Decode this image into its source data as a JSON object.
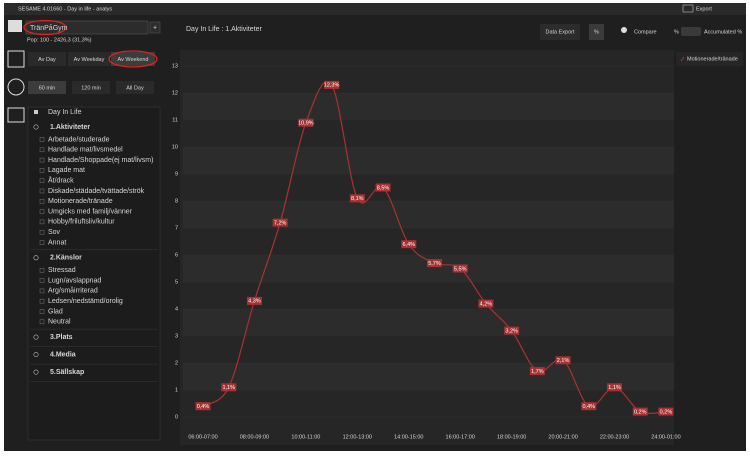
{
  "window": {
    "title": "SESAME 4.01660 - Day in life - analys",
    "export": "Export"
  },
  "sidebar": {
    "group": "TränPåGym",
    "pop": "Pop: 100 - 2426,3 (31,3%)",
    "day_buttons": [
      "Av Day",
      "Av Weekday",
      "Av Weekend"
    ],
    "time_buttons": [
      "60 min",
      "120 min",
      "All Day"
    ],
    "tree_header": "Day In Life",
    "sections": [
      {
        "label": "1.Aktiviteter",
        "items": [
          "Arbetade/studerade",
          "Handlade mat/livsmedel",
          "Handlade/Shoppade(ej mat/livsm)",
          "Lagade mat",
          "Åt/drack",
          "Diskade/städade/tvättade/strök",
          "Motionerade/tränade",
          "Umgicks med familj/vänner",
          "Hobby/friluftsliv/kultur",
          "Sov",
          "Annat"
        ]
      },
      {
        "label": "2.Känslor",
        "items": [
          "Stressad",
          "Lugn/avslappnad",
          "Arg/småirriterad",
          "Ledsen/nedstämd/orolig",
          "Glad",
          "Neutral"
        ]
      },
      {
        "label": "3.Plats",
        "items": []
      },
      {
        "label": "4.Media",
        "items": []
      },
      {
        "label": "5.Sällskap",
        "items": []
      }
    ]
  },
  "toolbar": {
    "data_export": "Data Export",
    "percent": "%",
    "compare": "Compare",
    "percent_toggle": "%",
    "accumulated": "Accumulated %"
  },
  "chart_data": {
    "type": "line",
    "title": "Day In Life : 1.Aktiviteter",
    "categories": [
      "06:00-07:00",
      null,
      "08:00-09:00",
      null,
      "10:00-11:00",
      null,
      "12:00-13:00",
      null,
      "14:00-15:00",
      null,
      "16:00-17:00",
      null,
      "18:00-19:00",
      null,
      "20:00-21:00",
      null,
      "22:00-23:00",
      null,
      "24:00-01:00"
    ],
    "series": [
      {
        "name": "Motionerade/tränade",
        "color": "#a83232",
        "values": [
          0.4,
          1.1,
          4.3,
          7.2,
          10.9,
          12.3,
          8.1,
          8.5,
          6.4,
          5.7,
          5.5,
          4.2,
          3.2,
          1.7,
          2.1,
          0.4,
          1.1,
          0.2,
          0.2
        ],
        "value_labels": [
          "0,4%",
          "1,1%",
          "4,3%",
          "7,2%",
          "10,9%",
          "12,3%",
          "8,1%",
          "8,5%",
          "6,4%",
          "5,7%",
          "5,5%",
          "4,2%",
          "3,2%",
          "1,7%",
          "2,1%",
          "0,4%",
          "1,1%",
          "0,2%",
          "0,2%"
        ]
      }
    ],
    "ylim": [
      0,
      13
    ],
    "yticks": [
      0,
      1,
      2,
      3,
      4,
      5,
      6,
      7,
      8,
      9,
      10,
      11,
      12,
      13
    ],
    "grid": true
  }
}
